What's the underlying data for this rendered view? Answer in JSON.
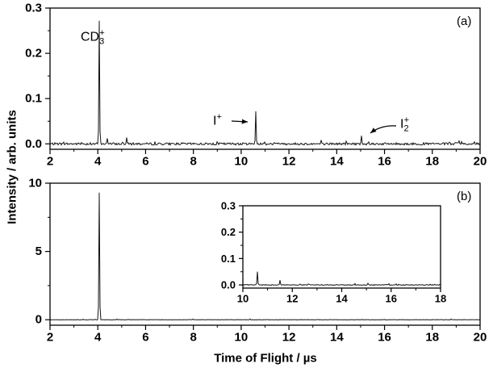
{
  "figure": {
    "ylabel": "Intensity / arb. units",
    "xlabel": "Time of Flight / µs"
  },
  "annotations": {
    "cd3": {
      "base": "CD",
      "sub": "3",
      "sup": "+"
    },
    "i_plus": {
      "base": "I",
      "sup": "+"
    },
    "i2_plus": {
      "base": "I",
      "sub": "2",
      "sup": "+"
    },
    "panel_a": "(a)",
    "panel_b": "(b)"
  },
  "chart_data": [
    {
      "id": "panel-a",
      "type": "line",
      "xlim": [
        2,
        20
      ],
      "ylim": [
        0,
        0.3
      ],
      "xtick_values": [
        2,
        4,
        6,
        8,
        10,
        12,
        14,
        16,
        18,
        20
      ],
      "xtick_labels": [
        "2",
        "4",
        "6",
        "8",
        "10",
        "12",
        "14",
        "16",
        "18",
        "20"
      ],
      "ytick_values": [
        0,
        0.1,
        0.2,
        0.3
      ],
      "ytick_labels": [
        "0.0",
        "0.1",
        "0.2",
        "0.3"
      ],
      "noise_amplitude": 0.0025,
      "peaks": [
        {
          "x": 4.05,
          "y": 0.272,
          "assignment": "CD3+"
        },
        {
          "x": 4.4,
          "y": 0.012
        },
        {
          "x": 5.2,
          "y": 0.014
        },
        {
          "x": 10.6,
          "y": 0.072,
          "assignment": "I+"
        },
        {
          "x": 15.05,
          "y": 0.018,
          "assignment": "I2+"
        }
      ]
    },
    {
      "id": "panel-b",
      "type": "line",
      "xlim": [
        2,
        20
      ],
      "ylim": [
        0,
        10
      ],
      "xtick_values": [
        2,
        4,
        6,
        8,
        10,
        12,
        14,
        16,
        18,
        20
      ],
      "xtick_labels": [
        "2",
        "4",
        "6",
        "8",
        "10",
        "12",
        "14",
        "16",
        "18",
        "20"
      ],
      "ytick_values": [
        0,
        5,
        10
      ],
      "ytick_labels": [
        "0",
        "5",
        "10"
      ],
      "noise_amplitude": 0.015,
      "peaks": [
        {
          "x": 4.05,
          "y": 9.3,
          "assignment": "CD3+"
        }
      ]
    },
    {
      "id": "inset",
      "type": "line",
      "xlim": [
        10,
        18
      ],
      "ylim": [
        0,
        0.3
      ],
      "xtick_values": [
        10,
        12,
        14,
        16,
        18
      ],
      "xtick_labels": [
        "10",
        "12",
        "14",
        "16",
        "18"
      ],
      "ytick_values": [
        0,
        0.1,
        0.2,
        0.3
      ],
      "ytick_labels": [
        "0.0",
        "0.1",
        "0.2",
        "0.3"
      ],
      "noise_amplitude": 0.0015,
      "peaks": [
        {
          "x": 10.6,
          "y": 0.05
        },
        {
          "x": 11.5,
          "y": 0.018
        },
        {
          "x": 15.05,
          "y": 0.006
        }
      ]
    }
  ]
}
